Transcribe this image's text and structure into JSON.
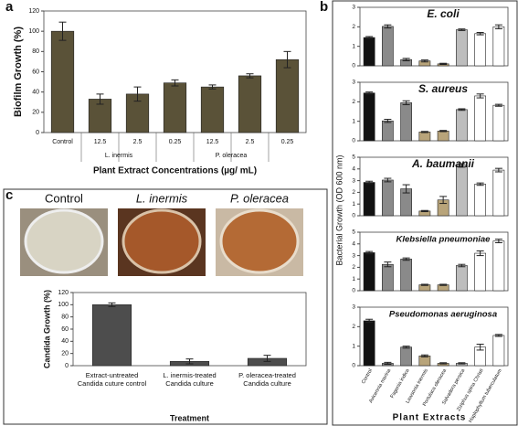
{
  "panels": [
    "a",
    "b",
    "c"
  ],
  "photo_labels": [
    "Control",
    "L. inermis",
    "P. oleracea"
  ],
  "panel_b": {
    "y_label": "Bacterial Growth (OD 600 nm)",
    "x_label": "Plant Extracts"
  },
  "chart_data": [
    {
      "type": "bar",
      "y_label": "Biofilm Growth (%)",
      "x_label": "Plant Extract Concentrations (µg/ mL)",
      "categories": [
        "Control",
        "12.5",
        "2.5",
        "0.25",
        "12.5",
        "2.5",
        "0.25"
      ],
      "groups": [
        "L. inermis",
        "P. oleracea"
      ],
      "values": [
        100,
        33,
        38,
        49,
        45,
        56,
        72
      ],
      "errors": [
        9,
        5,
        7,
        3,
        2,
        2,
        8
      ],
      "color": "#5a5238",
      "ylim": [
        0,
        120
      ],
      "yticks": [
        0,
        20,
        40,
        60,
        80,
        100,
        120
      ]
    },
    {
      "type": "bar",
      "title": "E. coli",
      "categories": [
        "Control",
        "Avicennia marina",
        "Fagonia indica",
        "Lawsonia inermis",
        "Portulaca oleracea",
        "Salvadora persica",
        "Ziziphus spina Christi",
        "Haplophyllum tuberculatum"
      ],
      "values": [
        1.45,
        2.02,
        0.32,
        0.25,
        0.1,
        1.85,
        1.65,
        2.0
      ],
      "errors": [
        0.05,
        0.08,
        0.06,
        0.05,
        0.03,
        0.04,
        0.06,
        0.1
      ],
      "colors": [
        "#111111",
        "#8a8a8a",
        "#8a8a8a",
        "#b8a47a",
        "#b8a47a",
        "#bdbdbd",
        "#ffffff",
        "#ffffff"
      ],
      "ylim": [
        0,
        3
      ],
      "yticks": [
        0,
        1,
        2,
        3
      ]
    },
    {
      "type": "bar",
      "title": "S. aureus",
      "categories": [
        "Control",
        "Avicennia marina",
        "Fagonia indica",
        "Lawsonia inermis",
        "Portulaca oleracea",
        "Salvadora persica",
        "Ziziphus spina Christi",
        "Haplophyllum tuberculatum"
      ],
      "values": [
        2.45,
        1.02,
        1.95,
        0.45,
        0.5,
        1.6,
        2.3,
        1.82
      ],
      "errors": [
        0.05,
        0.08,
        0.1,
        0.03,
        0.03,
        0.04,
        0.1,
        0.05
      ],
      "colors": [
        "#111111",
        "#8a8a8a",
        "#8a8a8a",
        "#b8a47a",
        "#b8a47a",
        "#bdbdbd",
        "#ffffff",
        "#ffffff"
      ],
      "ylim": [
        0,
        3
      ],
      "yticks": [
        0,
        1,
        2,
        3
      ]
    },
    {
      "type": "bar",
      "title": "A. baumanii",
      "categories": [
        "Control",
        "Avicennia marina",
        "Fagonia indica",
        "Lawsonia inermis",
        "Portulaca oleracea",
        "Salvadora persica",
        "Ziziphus spina Christi",
        "Haplophyllum tuberculatum"
      ],
      "values": [
        2.85,
        3.05,
        2.3,
        0.4,
        1.35,
        4.3,
        2.7,
        3.9
      ],
      "errors": [
        0.1,
        0.15,
        0.35,
        0.05,
        0.3,
        0.15,
        0.1,
        0.15
      ],
      "colors": [
        "#111111",
        "#8a8a8a",
        "#8a8a8a",
        "#b8a47a",
        "#b8a47a",
        "#bdbdbd",
        "#ffffff",
        "#ffffff"
      ],
      "ylim": [
        0,
        5
      ],
      "yticks": [
        0,
        1,
        2,
        3,
        4,
        5
      ]
    },
    {
      "type": "bar",
      "title": "Klebsiella pneumoniae",
      "categories": [
        "Control",
        "Avicennia marina",
        "Fagonia indica",
        "Lawsonia inermis",
        "Portulaca oleracea",
        "Salvadora persica",
        "Ziziphus spina Christi",
        "Haplophyllum tuberculatum"
      ],
      "values": [
        3.25,
        2.25,
        2.7,
        0.5,
        0.5,
        2.15,
        3.2,
        4.25
      ],
      "errors": [
        0.1,
        0.2,
        0.1,
        0.05,
        0.05,
        0.1,
        0.2,
        0.15
      ],
      "colors": [
        "#111111",
        "#8a8a8a",
        "#8a8a8a",
        "#b8a47a",
        "#b8a47a",
        "#bdbdbd",
        "#ffffff",
        "#ffffff"
      ],
      "ylim": [
        0,
        5
      ],
      "yticks": [
        0,
        1,
        2,
        3,
        4,
        5
      ]
    },
    {
      "type": "bar",
      "title": "Pseudomonas aeruginosa",
      "categories": [
        "Control",
        "Avicennia marina",
        "Fagonia indica",
        "Lawsonia inermis",
        "Portulaca oleracea",
        "Salvadora persica",
        "Ziziphus spina Christi",
        "Haplophyllum tuberculatum"
      ],
      "values": [
        2.3,
        0.12,
        0.95,
        0.5,
        0.12,
        0.12,
        0.95,
        1.55
      ],
      "errors": [
        0.08,
        0.05,
        0.05,
        0.05,
        0.03,
        0.03,
        0.15,
        0.05
      ],
      "colors": [
        "#111111",
        "#8a8a8a",
        "#8a8a8a",
        "#b8a47a",
        "#b8a47a",
        "#bdbdbd",
        "#ffffff",
        "#ffffff"
      ],
      "ylim": [
        0,
        3
      ],
      "yticks": [
        0,
        1,
        2,
        3
      ]
    },
    {
      "type": "bar",
      "y_label": "Candida Growth (%)",
      "x_label": "Treatment",
      "categories": [
        "Extract-untreated Candida cuture control",
        "L. inermis-treated Candida culture",
        "P. oleracea-treated Candida culture"
      ],
      "values": [
        100,
        7,
        12
      ],
      "errors": [
        3,
        4,
        5
      ],
      "color": "#4d4d4d",
      "ylim": [
        0,
        120
      ],
      "yticks": [
        0,
        20,
        40,
        60,
        80,
        100,
        120
      ]
    }
  ]
}
